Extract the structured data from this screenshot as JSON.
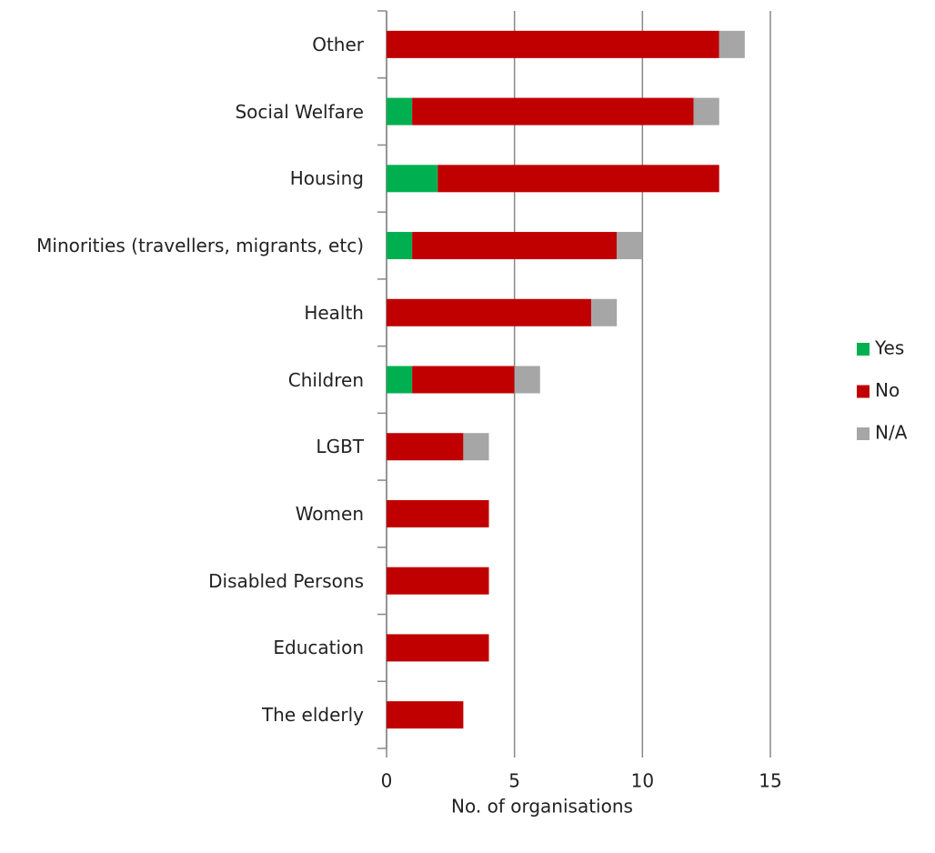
{
  "chart_data": {
    "type": "stacked-barh",
    "categories": [
      "Other",
      "Social Welfare",
      "Housing",
      "Minorities (travellers, migrants, etc)",
      "Health",
      "Children",
      "LGBT",
      "Women",
      "Disabled Persons",
      "Education",
      "The elderly"
    ],
    "series": [
      {
        "name": "Yes",
        "color": "#00b050",
        "values": [
          0,
          1,
          2,
          1,
          0,
          1,
          0,
          0,
          0,
          0,
          0
        ]
      },
      {
        "name": "No",
        "color": "#c00000",
        "values": [
          13,
          11,
          11,
          8,
          8,
          4,
          3,
          4,
          4,
          4,
          3
        ]
      },
      {
        "name": "N/A",
        "color": "#a6a6a6",
        "values": [
          1,
          1,
          0,
          1,
          1,
          1,
          1,
          0,
          0,
          0,
          0
        ]
      }
    ],
    "xlabel": "No. of organisations",
    "xlim": [
      0,
      15
    ],
    "xticks": [
      0,
      5,
      10,
      15
    ],
    "grid": true,
    "legend": "right"
  }
}
